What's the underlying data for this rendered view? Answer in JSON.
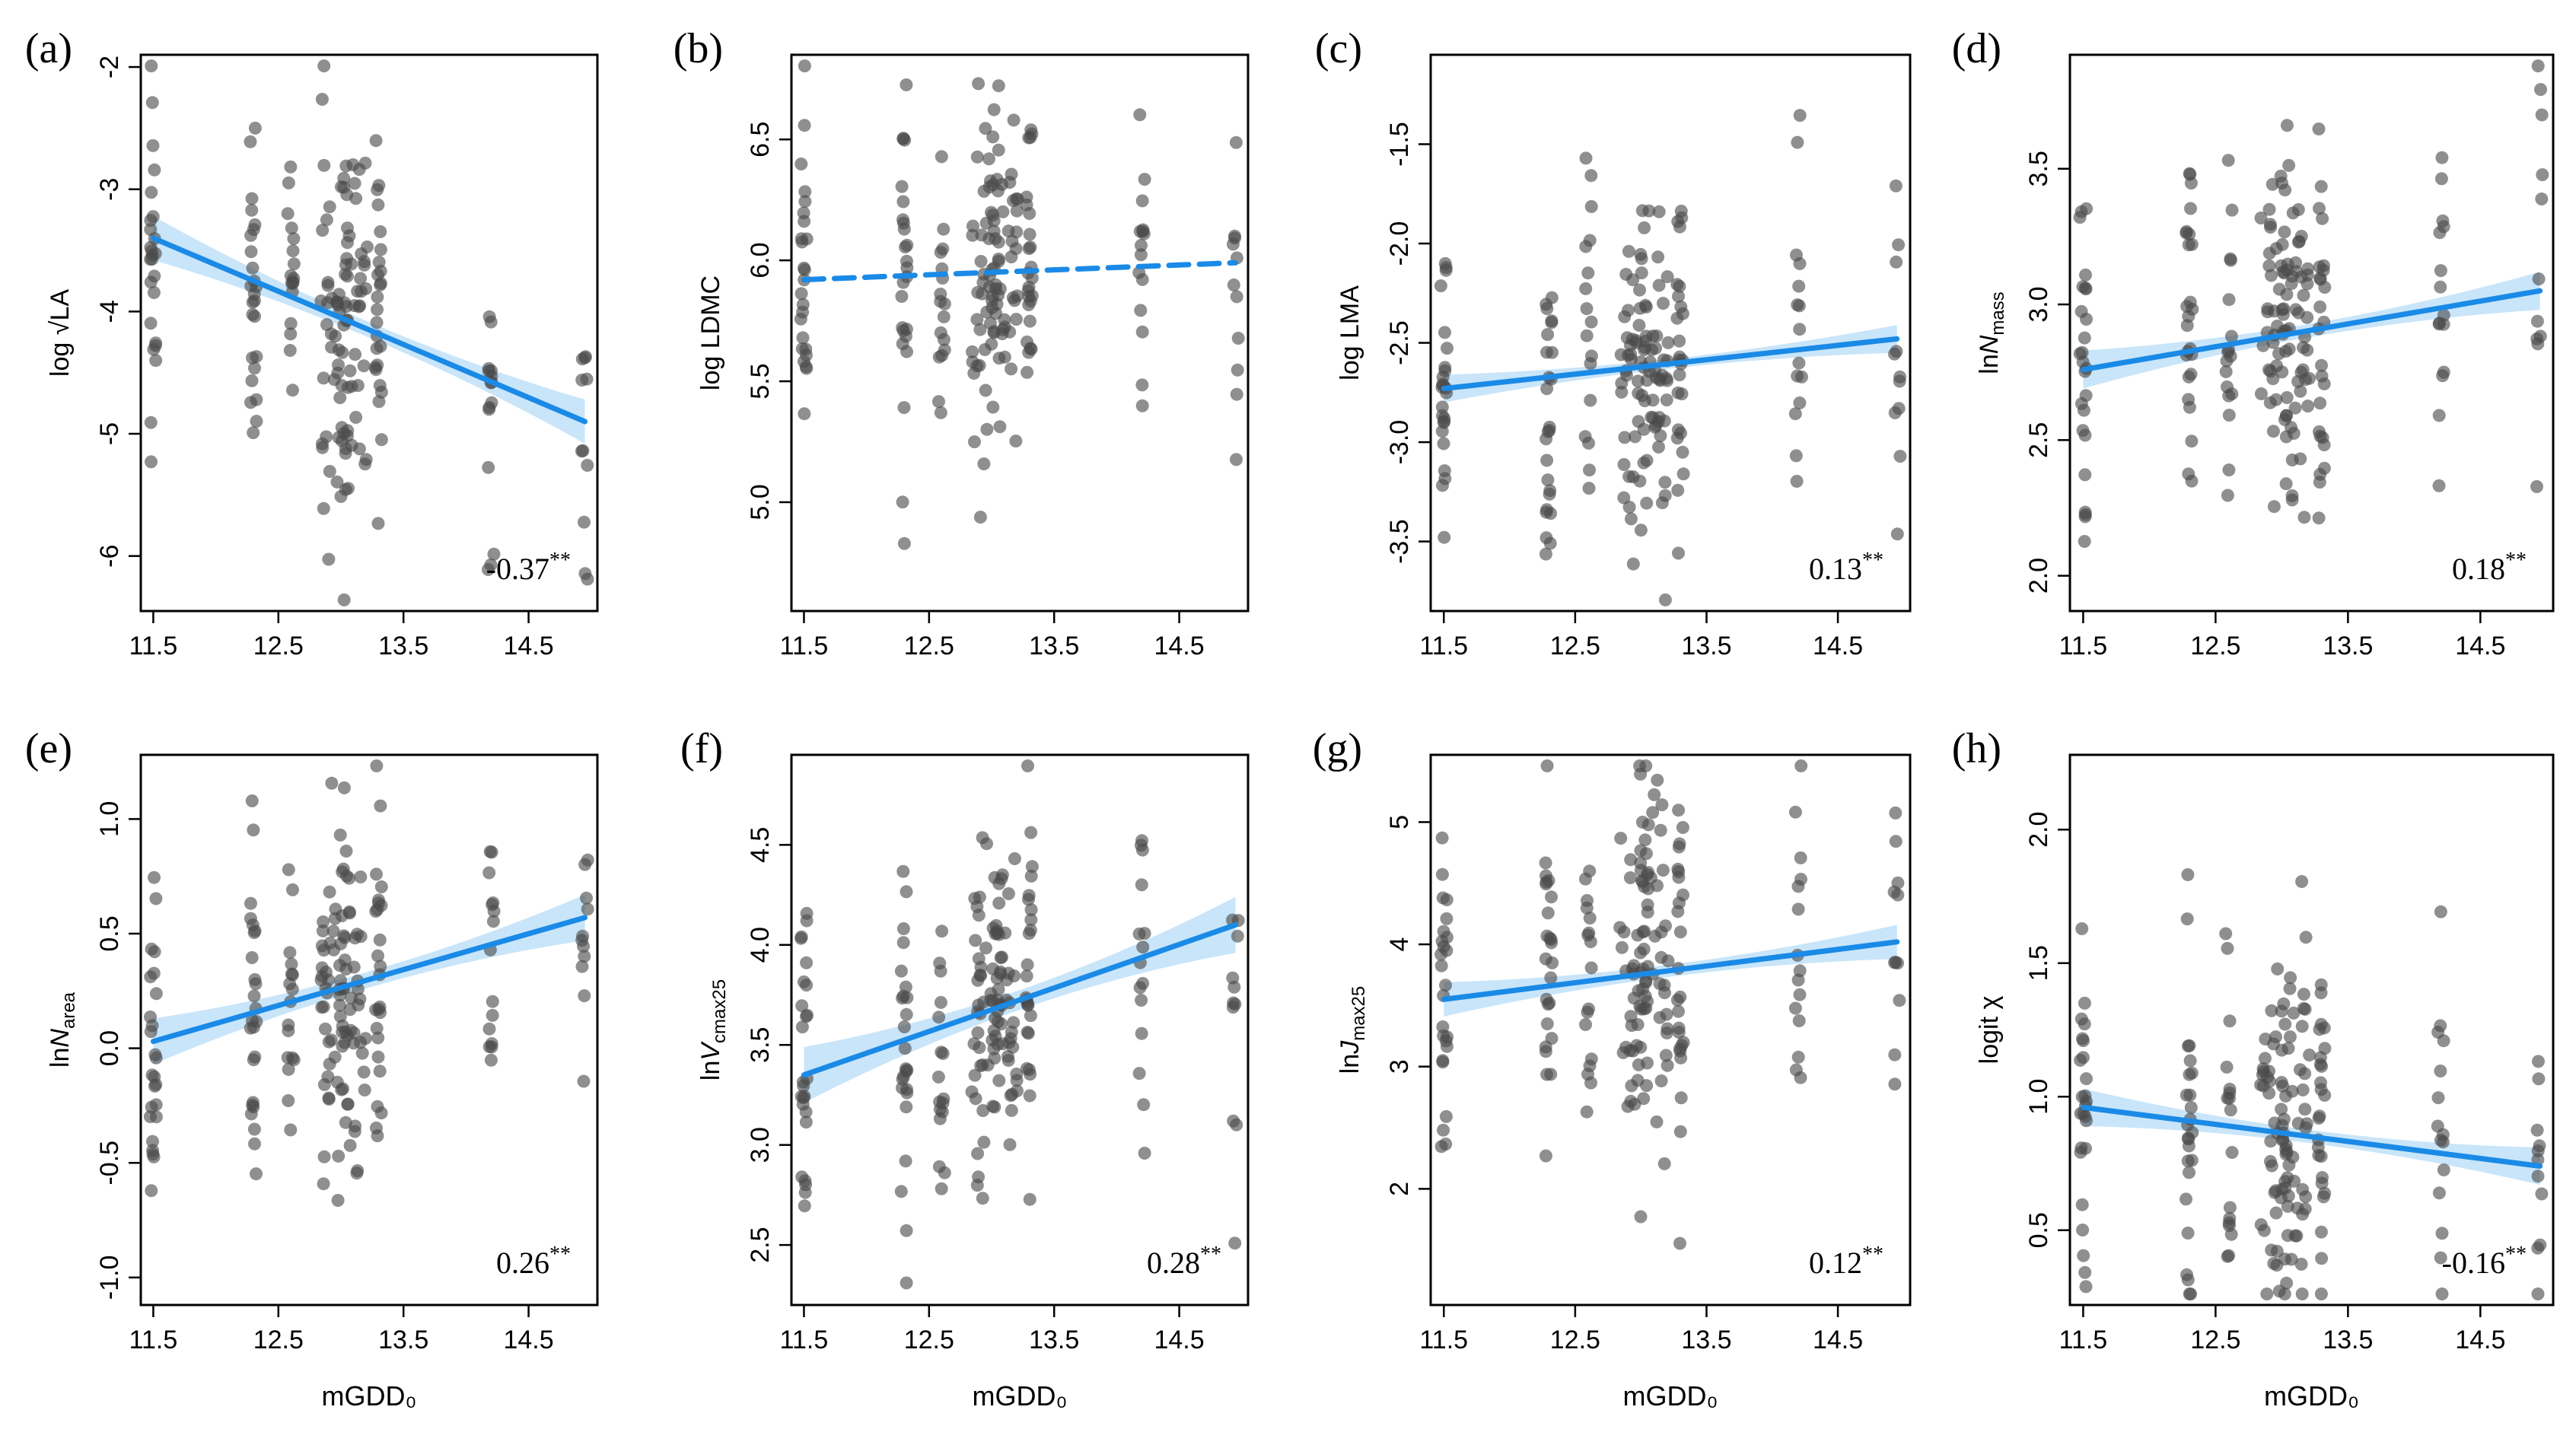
{
  "chart_data": [
    {
      "panel": "(a)",
      "type": "scatter",
      "xlabel": "",
      "ylabel": "log √LA",
      "xticks": [
        11.5,
        12.5,
        13.5,
        14.5
      ],
      "xtick_labels": [
        "11.5",
        "12.5",
        "13.5",
        "14.5"
      ],
      "yticks": [
        -6,
        -5,
        -4,
        -3,
        -2
      ],
      "ytick_labels": [
        "-6",
        "-5",
        "-4",
        "-3",
        "-2"
      ],
      "xlim": [
        11.4,
        15.05
      ],
      "ylim": [
        -6.45,
        -1.9
      ],
      "fit": {
        "x0": 11.5,
        "y0": -3.4,
        "x1": 14.95,
        "y1": -4.9,
        "dashed": false,
        "band": 0.18
      },
      "coef_value": "-0.37",
      "coef_sig": "**",
      "coef_position": "bottom-right",
      "x_clusters": [
        11.5,
        12.3,
        12.6,
        12.95,
        13.1,
        13.3,
        14.2,
        14.95
      ],
      "n_points": 210
    },
    {
      "panel": "(b)",
      "type": "scatter",
      "xlabel": "",
      "ylabel": "log LDMC",
      "xticks": [
        11.5,
        12.5,
        13.5,
        14.5
      ],
      "xtick_labels": [
        "11.5",
        "12.5",
        "13.5",
        "14.5"
      ],
      "yticks": [
        5.0,
        5.5,
        6.0,
        6.5
      ],
      "ytick_labels": [
        "5.0",
        "5.5",
        "6.0",
        "6.5"
      ],
      "xlim": [
        11.4,
        15.05
      ],
      "ylim": [
        4.55,
        6.85
      ],
      "fit": {
        "x0": 11.5,
        "y0": 5.92,
        "x1": 14.95,
        "y1": 5.99,
        "dashed": true,
        "band": 0
      },
      "coef_value": "",
      "coef_sig": "",
      "coef_position": "bottom-right",
      "x_clusters": [
        11.5,
        12.3,
        12.6,
        12.95,
        13.1,
        13.3,
        14.2,
        14.95
      ],
      "n_points": 210
    },
    {
      "panel": "(c)",
      "type": "scatter",
      "xlabel": "",
      "ylabel": "log LMA",
      "xticks": [
        11.5,
        12.5,
        13.5,
        14.5
      ],
      "xtick_labels": [
        "11.5",
        "12.5",
        "13.5",
        "14.5"
      ],
      "yticks": [
        -3.5,
        -3.0,
        -2.5,
        -2.0,
        -1.5
      ],
      "ytick_labels": [
        "-3.5",
        "-3.0",
        "-2.5",
        "-2.0",
        "-1.5"
      ],
      "xlim": [
        11.4,
        15.05
      ],
      "ylim": [
        -3.85,
        -1.05
      ],
      "fit": {
        "x0": 11.5,
        "y0": -2.73,
        "x1": 14.95,
        "y1": -2.48,
        "dashed": false,
        "band": 0.07
      },
      "coef_value": "0.13",
      "coef_sig": "**",
      "coef_position": "bottom-right",
      "x_clusters": [
        11.5,
        12.3,
        12.6,
        12.95,
        13.1,
        13.3,
        14.2,
        14.95
      ],
      "n_points": 210
    },
    {
      "panel": "(d)",
      "type": "scatter",
      "xlabel": "",
      "ylabel": "ln N_mass",
      "xticks": [
        11.5,
        12.5,
        13.5,
        14.5
      ],
      "xtick_labels": [
        "11.5",
        "12.5",
        "13.5",
        "14.5"
      ],
      "yticks": [
        2.0,
        2.5,
        3.0,
        3.5
      ],
      "ytick_labels": [
        "2.0",
        "2.5",
        "3.0",
        "3.5"
      ],
      "xlim": [
        11.4,
        15.05
      ],
      "ylim": [
        1.87,
        3.92
      ],
      "fit": {
        "x0": 11.5,
        "y0": 2.76,
        "x1": 14.95,
        "y1": 3.05,
        "dashed": false,
        "band": 0.07
      },
      "coef_value": "0.18",
      "coef_sig": "**",
      "coef_position": "bottom-right",
      "x_clusters": [
        11.5,
        12.3,
        12.6,
        12.95,
        13.1,
        13.3,
        14.2,
        14.95
      ],
      "n_points": 210
    },
    {
      "panel": "(e)",
      "type": "scatter",
      "xlabel": "mGDD₀",
      "ylabel": "ln N_area",
      "xticks": [
        11.5,
        12.5,
        13.5,
        14.5
      ],
      "xtick_labels": [
        "11.5",
        "12.5",
        "13.5",
        "14.5"
      ],
      "yticks": [
        -1.0,
        -0.5,
        0.0,
        0.5,
        1.0
      ],
      "ytick_labels": [
        "-1.0",
        "-0.5",
        "0.0",
        "0.5",
        "1.0"
      ],
      "xlim": [
        11.4,
        15.05
      ],
      "ylim": [
        -1.12,
        1.28
      ],
      "fit": {
        "x0": 11.5,
        "y0": 0.03,
        "x1": 14.95,
        "y1": 0.57,
        "dashed": false,
        "band": 0.1
      },
      "coef_value": "0.26",
      "coef_sig": "**",
      "coef_position": "bottom-right",
      "x_clusters": [
        11.5,
        12.3,
        12.6,
        12.95,
        13.1,
        13.3,
        14.2,
        14.95
      ],
      "n_points": 210
    },
    {
      "panel": "(f)",
      "type": "scatter",
      "xlabel": "mGDD₀",
      "ylabel": "ln V_cmax25",
      "xticks": [
        11.5,
        12.5,
        13.5,
        14.5
      ],
      "xtick_labels": [
        "11.5",
        "12.5",
        "13.5",
        "14.5"
      ],
      "yticks": [
        2.5,
        3.0,
        3.5,
        4.0,
        4.5
      ],
      "ytick_labels": [
        "2.5",
        "3.0",
        "3.5",
        "4.0",
        "4.5"
      ],
      "xlim": [
        11.4,
        15.05
      ],
      "ylim": [
        2.2,
        4.95
      ],
      "fit": {
        "x0": 11.5,
        "y0": 3.35,
        "x1": 14.95,
        "y1": 4.1,
        "dashed": false,
        "band": 0.14
      },
      "coef_value": "0.28",
      "coef_sig": "**",
      "coef_position": "bottom-right",
      "x_clusters": [
        11.5,
        12.3,
        12.6,
        12.95,
        13.1,
        13.3,
        14.2,
        14.95
      ],
      "n_points": 210
    },
    {
      "panel": "(g)",
      "type": "scatter",
      "xlabel": "mGDD₀",
      "ylabel": "ln J_max25",
      "xticks": [
        11.5,
        12.5,
        13.5,
        14.5
      ],
      "xtick_labels": [
        "11.5",
        "12.5",
        "13.5",
        "14.5"
      ],
      "yticks": [
        2,
        3,
        4,
        5
      ],
      "ytick_labels": [
        "2",
        "3",
        "4",
        "5"
      ],
      "xlim": [
        11.4,
        15.05
      ],
      "ylim": [
        1.05,
        5.55
      ],
      "fit": {
        "x0": 11.5,
        "y0": 3.55,
        "x1": 14.95,
        "y1": 4.02,
        "dashed": false,
        "band": 0.14
      },
      "coef_value": "0.12",
      "coef_sig": "**",
      "coef_position": "bottom-right",
      "x_clusters": [
        11.5,
        12.3,
        12.6,
        12.95,
        13.1,
        13.3,
        14.2,
        14.95
      ],
      "n_points": 210
    },
    {
      "panel": "(h)",
      "type": "scatter",
      "xlabel": "mGDD₀",
      "ylabel": "logit χ",
      "xticks": [
        11.5,
        12.5,
        13.5,
        14.5
      ],
      "xtick_labels": [
        "11.5",
        "12.5",
        "13.5",
        "14.5"
      ],
      "yticks": [
        0.5,
        1.0,
        1.5,
        2.0
      ],
      "ytick_labels": [
        "0.5",
        "1.0",
        "1.5",
        "2.0"
      ],
      "xlim": [
        11.4,
        15.05
      ],
      "ylim": [
        0.22,
        2.28
      ],
      "fit": {
        "x0": 11.5,
        "y0": 0.96,
        "x1": 14.95,
        "y1": 0.74,
        "dashed": false,
        "band": 0.07
      },
      "coef_value": "-0.16",
      "coef_sig": "**",
      "coef_position": "bottom-right",
      "x_clusters": [
        11.5,
        12.3,
        12.6,
        12.95,
        13.1,
        13.3,
        14.2,
        14.95
      ],
      "n_points": 210
    }
  ],
  "colors": {
    "point": "#4a4a4a",
    "fit_line": "#1a8ae6",
    "ci_band": "#bfe0f8",
    "frame": "#000000"
  }
}
